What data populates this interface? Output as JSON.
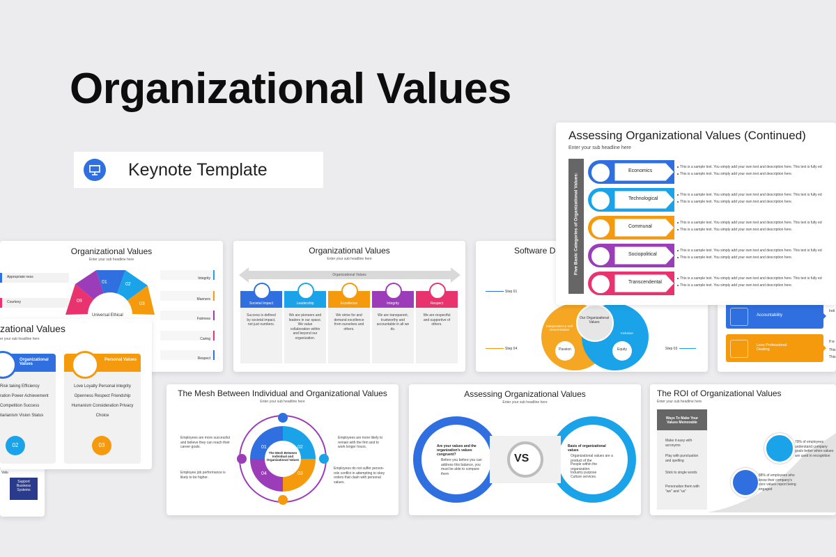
{
  "hero": {
    "title": "Organizational Values",
    "badge_label": "Keynote Template",
    "badge_icon": "presentation-icon"
  },
  "colors": {
    "blue": "#2f6fe0",
    "lightblue": "#1aa3e8",
    "orange": "#f59a0c",
    "purple": "#9b3cb8",
    "pink": "#e8336f",
    "navy": "#2a3a8c"
  },
  "slides": {
    "assessing_continued": {
      "title": "Assessing Organizational Values (Continued)",
      "subtitle": "Enter your sub headline here",
      "side_label": "Five Basic Categories of Organizational Values:",
      "items": [
        {
          "label": "Economics",
          "line1": "This is a sample text. You simply add your own text and description here. This text is fully ed",
          "line2": "This is a sample text. You simply add your own text and description here."
        },
        {
          "label": "Technological",
          "line1": "This is a sample text. You simply add your own text and description here. This text is fully ed",
          "line2": "This is a sample text. You simply add your own text and description here."
        },
        {
          "label": "Communal",
          "line1": "This is a sample text. You simply add your own text and description here. This text is fully ed",
          "line2": "This is a sample text. You simply add your own text and description here."
        },
        {
          "label": "Sociopolitical",
          "line1": "This is a sample text. You simply add your own text and description here. This text is fully ed",
          "line2": "This is a sample text. You simply add your own text and description here."
        },
        {
          "label": "Transcendental",
          "line1": "This is a sample text. You simply add your own text and description here. This text is fully ed",
          "line2": "This is a sample text. You simply add your own text and description here."
        }
      ]
    },
    "wheel": {
      "title": "Organizational Values",
      "subtitle": "Enter your sub headline here",
      "left_labels": [
        "Appropriate ness",
        "Courtesy"
      ],
      "right_labels": [
        "Integrity",
        "Manners",
        "Fairness",
        "Caring",
        "Respect"
      ],
      "center_text": "Universal Ethical Values",
      "numbers": [
        "01",
        "02",
        "03",
        "09"
      ]
    },
    "personal": {
      "title": "zational Values",
      "subtitle": "er your sub headline here",
      "left_head": "Organizational Values",
      "right_head": "Personal Values",
      "left_lines": [
        "Risk taking Efficiency",
        "ration Power Achievement",
        "Competition Success",
        "itarianism Vision Status"
      ],
      "right_lines": [
        "Love Loyalty Personal integrity",
        "Openness Respect Friendship",
        "Humanism Consideration Privacy",
        "Choice"
      ],
      "left_num": "02",
      "right_num": "03"
    },
    "arrow_slide": {
      "title": "Organizational Values",
      "subtitle": "Enter your sub headline here",
      "arrow_label": "Organizational Values",
      "columns": [
        {
          "head": "Societal Impact",
          "text": "Success is defined by societal impact, not just numbers."
        },
        {
          "head": "Leadership",
          "text": "We are pioneers and leaders in our space. We value collaboration within and beyond our organization."
        },
        {
          "head": "Excellence",
          "text": "We strive for and demand excellence from ourselves and others."
        },
        {
          "head": "Integrity",
          "text": "We are transparent, trustworthy and accountable in all we do."
        },
        {
          "head": "Respect",
          "text": "We are respectful and supportive of others."
        }
      ]
    },
    "software": {
      "title": "Software D",
      "center": "Our Organizational Values",
      "left_bubble": "Independent & Self Determination",
      "right_bubble": "Inclusion",
      "bottom_left": "Passion",
      "bottom_right": "Equity",
      "step1": "Step 01",
      "step4": "Step 04",
      "step3": "Step 03"
    },
    "accountability": {
      "row1": "Accountability",
      "row2": "Less Professional Dealing",
      "tail1": "Indi",
      "tail2": "If w",
      "tail3": "This",
      "tail4": "This"
    },
    "bluebox": {
      "lines": [
        "Support",
        "Business",
        "Systems"
      ],
      "extra": "Valu"
    },
    "mesh": {
      "title": "The Mesh Between Individual and Organizational Values",
      "subtitle": "Enter your sub headline here",
      "center": "The Mesh Between Individual and Organizational Values",
      "numbers": [
        "01",
        "02",
        "03",
        "04"
      ],
      "tl": "Employees are more successful and believe they can reach their career goals.",
      "bl": "Employee job performance is likely to be higher.",
      "tr": "Employees are more likely to remain with the firm and to work longer hours.",
      "br": "Employees do not suffer person-role conflict in attempting to obey orders that clash with personal values."
    },
    "vs": {
      "title": "Assessing Organizational Values",
      "subtitle": "Enter your sub headline here",
      "vs_label": "VS",
      "left_head": "Are your values and the organization's values congruent?",
      "left_bullet": "Before you before you can address this balance, you must be able to compare them",
      "right_head": "Basis of organizational values",
      "right_bullets": [
        "Organizational values are a product of the",
        "People within the organization.",
        "Industry purpose",
        "Culture services."
      ]
    },
    "roi": {
      "title": "The ROI of Organizational Values",
      "subtitle": "Enter your sub headline here",
      "box_head": "Ways To Make Your Values Memorable",
      "tips": [
        "Make it easy with acronyms",
        "Play with punctuation and spelling",
        "Stick to single words",
        "Personalize them with \"we\" and \"us\""
      ],
      "stat1": "79% of employees understand company goals better when values are used in recognition",
      "stat2": "88% of employees who know their company's core values report being engaged"
    }
  }
}
